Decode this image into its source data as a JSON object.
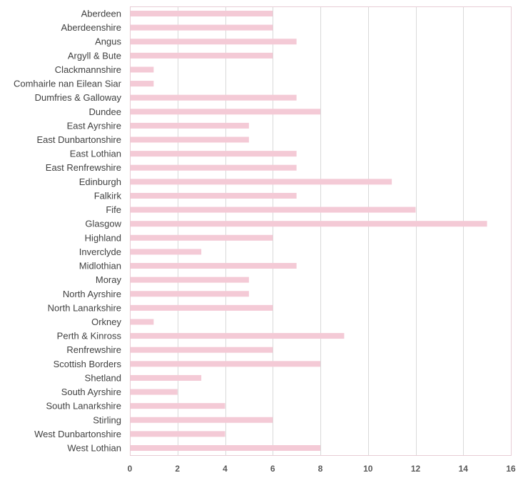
{
  "chart_data": {
    "type": "bar",
    "orientation": "horizontal",
    "categories": [
      "Aberdeen",
      "Aberdeenshire",
      "Angus",
      "Argyll & Bute",
      "Clackmannshire",
      "Comhairle nan Eilean Siar",
      "Dumfries & Galloway",
      "Dundee",
      "East Ayrshire",
      "East Dunbartonshire",
      "East Lothian",
      "East Renfrewshire",
      "Edinburgh",
      "Falkirk",
      "Fife",
      "Glasgow",
      "Highland",
      "Inverclyde",
      "Midlothian",
      "Moray",
      "North Ayrshire",
      "North Lanarkshire",
      "Orkney",
      "Perth & Kinross",
      "Renfrewshire",
      "Scottish Borders",
      "Shetland",
      "South Ayrshire",
      "South Lanarkshire",
      "Stirling",
      "West Dunbartonshire",
      "West Lothian"
    ],
    "values": [
      6,
      6,
      7,
      6,
      1,
      1,
      7,
      8,
      5,
      5,
      7,
      7,
      11,
      7,
      12,
      15,
      6,
      3,
      7,
      5,
      5,
      6,
      1,
      9,
      6,
      8,
      3,
      2,
      4,
      6,
      4,
      8
    ],
    "xlim": [
      0,
      16
    ],
    "xticks": [
      "0",
      "2",
      "4",
      "6",
      "8",
      "10",
      "12",
      "14",
      "16"
    ],
    "grid": true,
    "bar_color": "#f4cad6",
    "grid_color": "#d9d9d9",
    "title": "",
    "xlabel": "",
    "ylabel": ""
  }
}
